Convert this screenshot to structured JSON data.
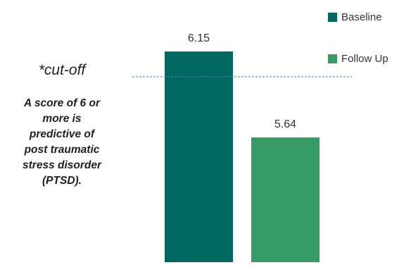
{
  "chart_data": {
    "type": "bar",
    "categories": [
      "Baseline",
      "Follow Up"
    ],
    "values": [
      6.15,
      5.64
    ],
    "value_labels": [
      "6.15",
      "5.64"
    ],
    "colors": [
      "#006861",
      "#379b68"
    ],
    "legend": {
      "entries": [
        "Baseline",
        "Follow Up"
      ],
      "position": "top-right"
    },
    "reference_line": {
      "value": 6,
      "style": "dashed",
      "color": "#4a7fc1"
    },
    "ylim": [
      4.9,
      6.33
    ],
    "grid": false
  },
  "annotation": {
    "title": "*cut-off",
    "lines": [
      "A score of 6 or",
      "more is",
      "predictive of",
      "post traumatic",
      "stress disorder",
      "(PTSD)."
    ]
  }
}
